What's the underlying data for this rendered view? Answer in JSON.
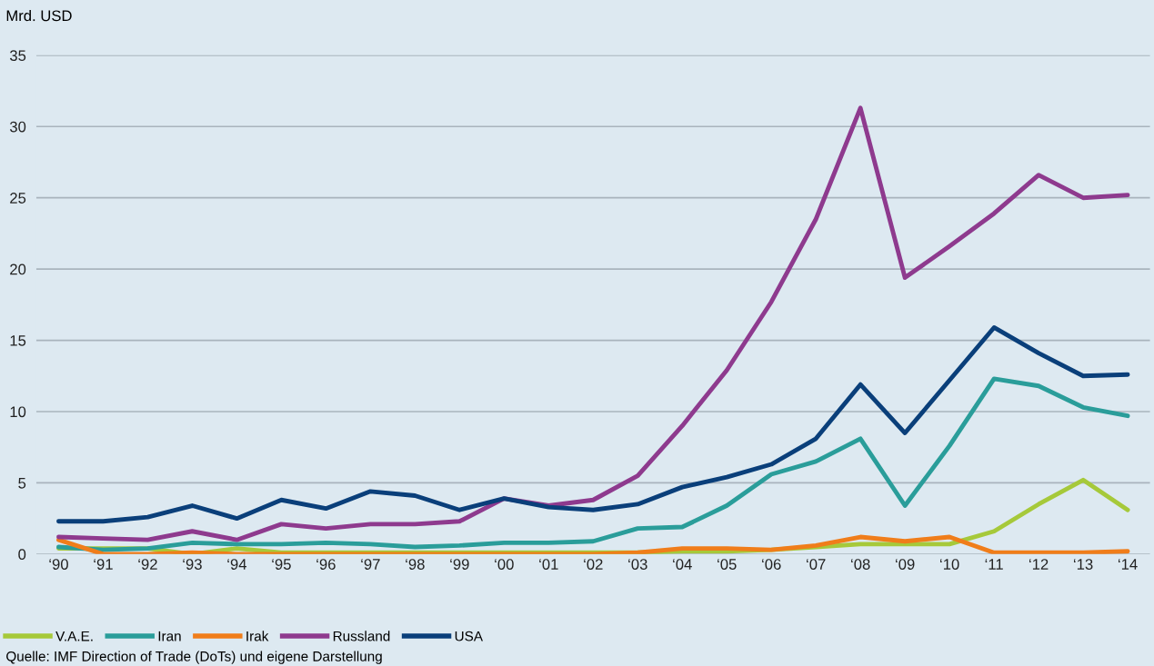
{
  "chart_data": {
    "type": "line",
    "ylabel": "Mrd. USD",
    "categories": [
      "‘90",
      "‘91",
      "‘92",
      "‘93",
      "‘94",
      "‘95",
      "‘96",
      "‘97",
      "‘98",
      "‘99",
      "‘00",
      "‘01",
      "‘02",
      "‘03",
      "‘04",
      "‘05",
      "‘06",
      "‘07",
      "‘08",
      "‘09",
      "‘10",
      "‘11",
      "‘12",
      "‘13",
      "‘14"
    ],
    "series": [
      {
        "name": "V.A.E.",
        "color": "#a6c93a",
        "values": [
          0.4,
          0.4,
          0.4,
          0.0,
          0.4,
          0.1,
          0.1,
          0.1,
          0.1,
          0.1,
          0.1,
          0.1,
          0.1,
          0.1,
          0.2,
          0.2,
          0.3,
          0.5,
          0.7,
          0.7,
          0.7,
          1.6,
          3.5,
          5.2,
          3.1
        ]
      },
      {
        "name": "Iran",
        "color": "#2a9d9a",
        "values": [
          0.5,
          0.3,
          0.4,
          0.8,
          0.7,
          0.7,
          0.8,
          0.7,
          0.5,
          0.6,
          0.8,
          0.8,
          0.9,
          1.8,
          1.9,
          3.4,
          5.6,
          6.5,
          8.1,
          3.4,
          7.6,
          12.3,
          11.8,
          10.3,
          9.7
        ]
      },
      {
        "name": "Irak",
        "color": "#f07d1a",
        "values": [
          1.0,
          0.0,
          0.0,
          0.1,
          0.0,
          0.0,
          0.0,
          0.0,
          0.0,
          0.0,
          0.0,
          0.0,
          0.0,
          0.1,
          0.4,
          0.4,
          0.3,
          0.6,
          1.2,
          0.9,
          1.2,
          0.1,
          0.1,
          0.1,
          0.2
        ]
      },
      {
        "name": "Russland",
        "color": "#8e3a8e",
        "values": [
          1.2,
          1.1,
          1.0,
          1.6,
          1.0,
          2.1,
          1.8,
          2.1,
          2.1,
          2.3,
          3.9,
          3.4,
          3.8,
          5.5,
          9.0,
          12.9,
          17.7,
          23.5,
          31.3,
          19.4,
          21.6,
          23.9,
          26.6,
          25.0,
          25.2
        ]
      },
      {
        "name": "USA",
        "color": "#0a3f7a",
        "values": [
          2.3,
          2.3,
          2.6,
          3.4,
          2.5,
          3.8,
          3.2,
          4.4,
          4.1,
          3.1,
          3.9,
          3.3,
          3.1,
          3.5,
          4.7,
          5.4,
          6.3,
          8.1,
          11.9,
          8.5,
          12.2,
          15.9,
          14.1,
          12.5,
          12.6
        ]
      }
    ],
    "ylim": [
      0,
      35
    ],
    "yticks": [
      0,
      5,
      10,
      15,
      20,
      25,
      30,
      35
    ],
    "grid": "y",
    "legend": "bottom left",
    "line_style": "solid",
    "marker": "none",
    "annotations": [
      "Quelle: IMF Direction of Trade (DoTs) und eigene Darstellung"
    ]
  }
}
